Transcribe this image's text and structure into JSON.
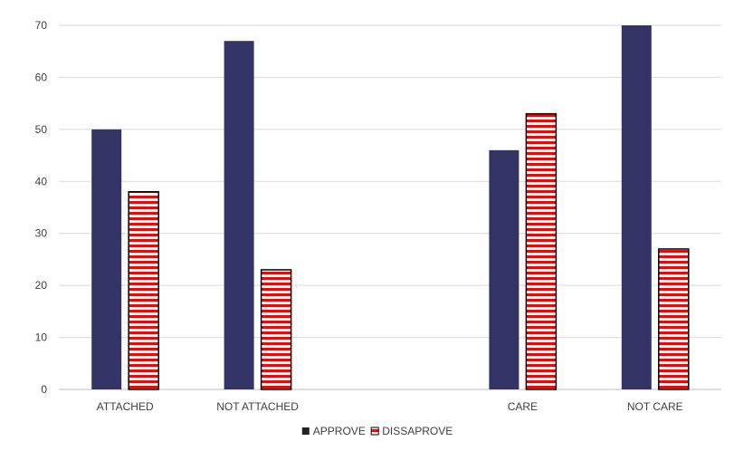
{
  "chart_data": {
    "type": "bar",
    "categories": [
      "ATTACHED",
      "NOT ATTACHED",
      "",
      "CARE",
      "NOT CARE"
    ],
    "series": [
      {
        "name": "APPROVE",
        "values": [
          50,
          67,
          null,
          46,
          70
        ],
        "color": "#333366"
      },
      {
        "name": "DISSAPROVE",
        "values": [
          38,
          23,
          null,
          53,
          27
        ],
        "color": "#ff0000",
        "pattern": "horizontal-stripes"
      }
    ],
    "ylim": [
      0,
      70
    ],
    "yticks": [
      0,
      10,
      20,
      30,
      40,
      50,
      60,
      70
    ],
    "grid": true,
    "legend": "bottom"
  }
}
